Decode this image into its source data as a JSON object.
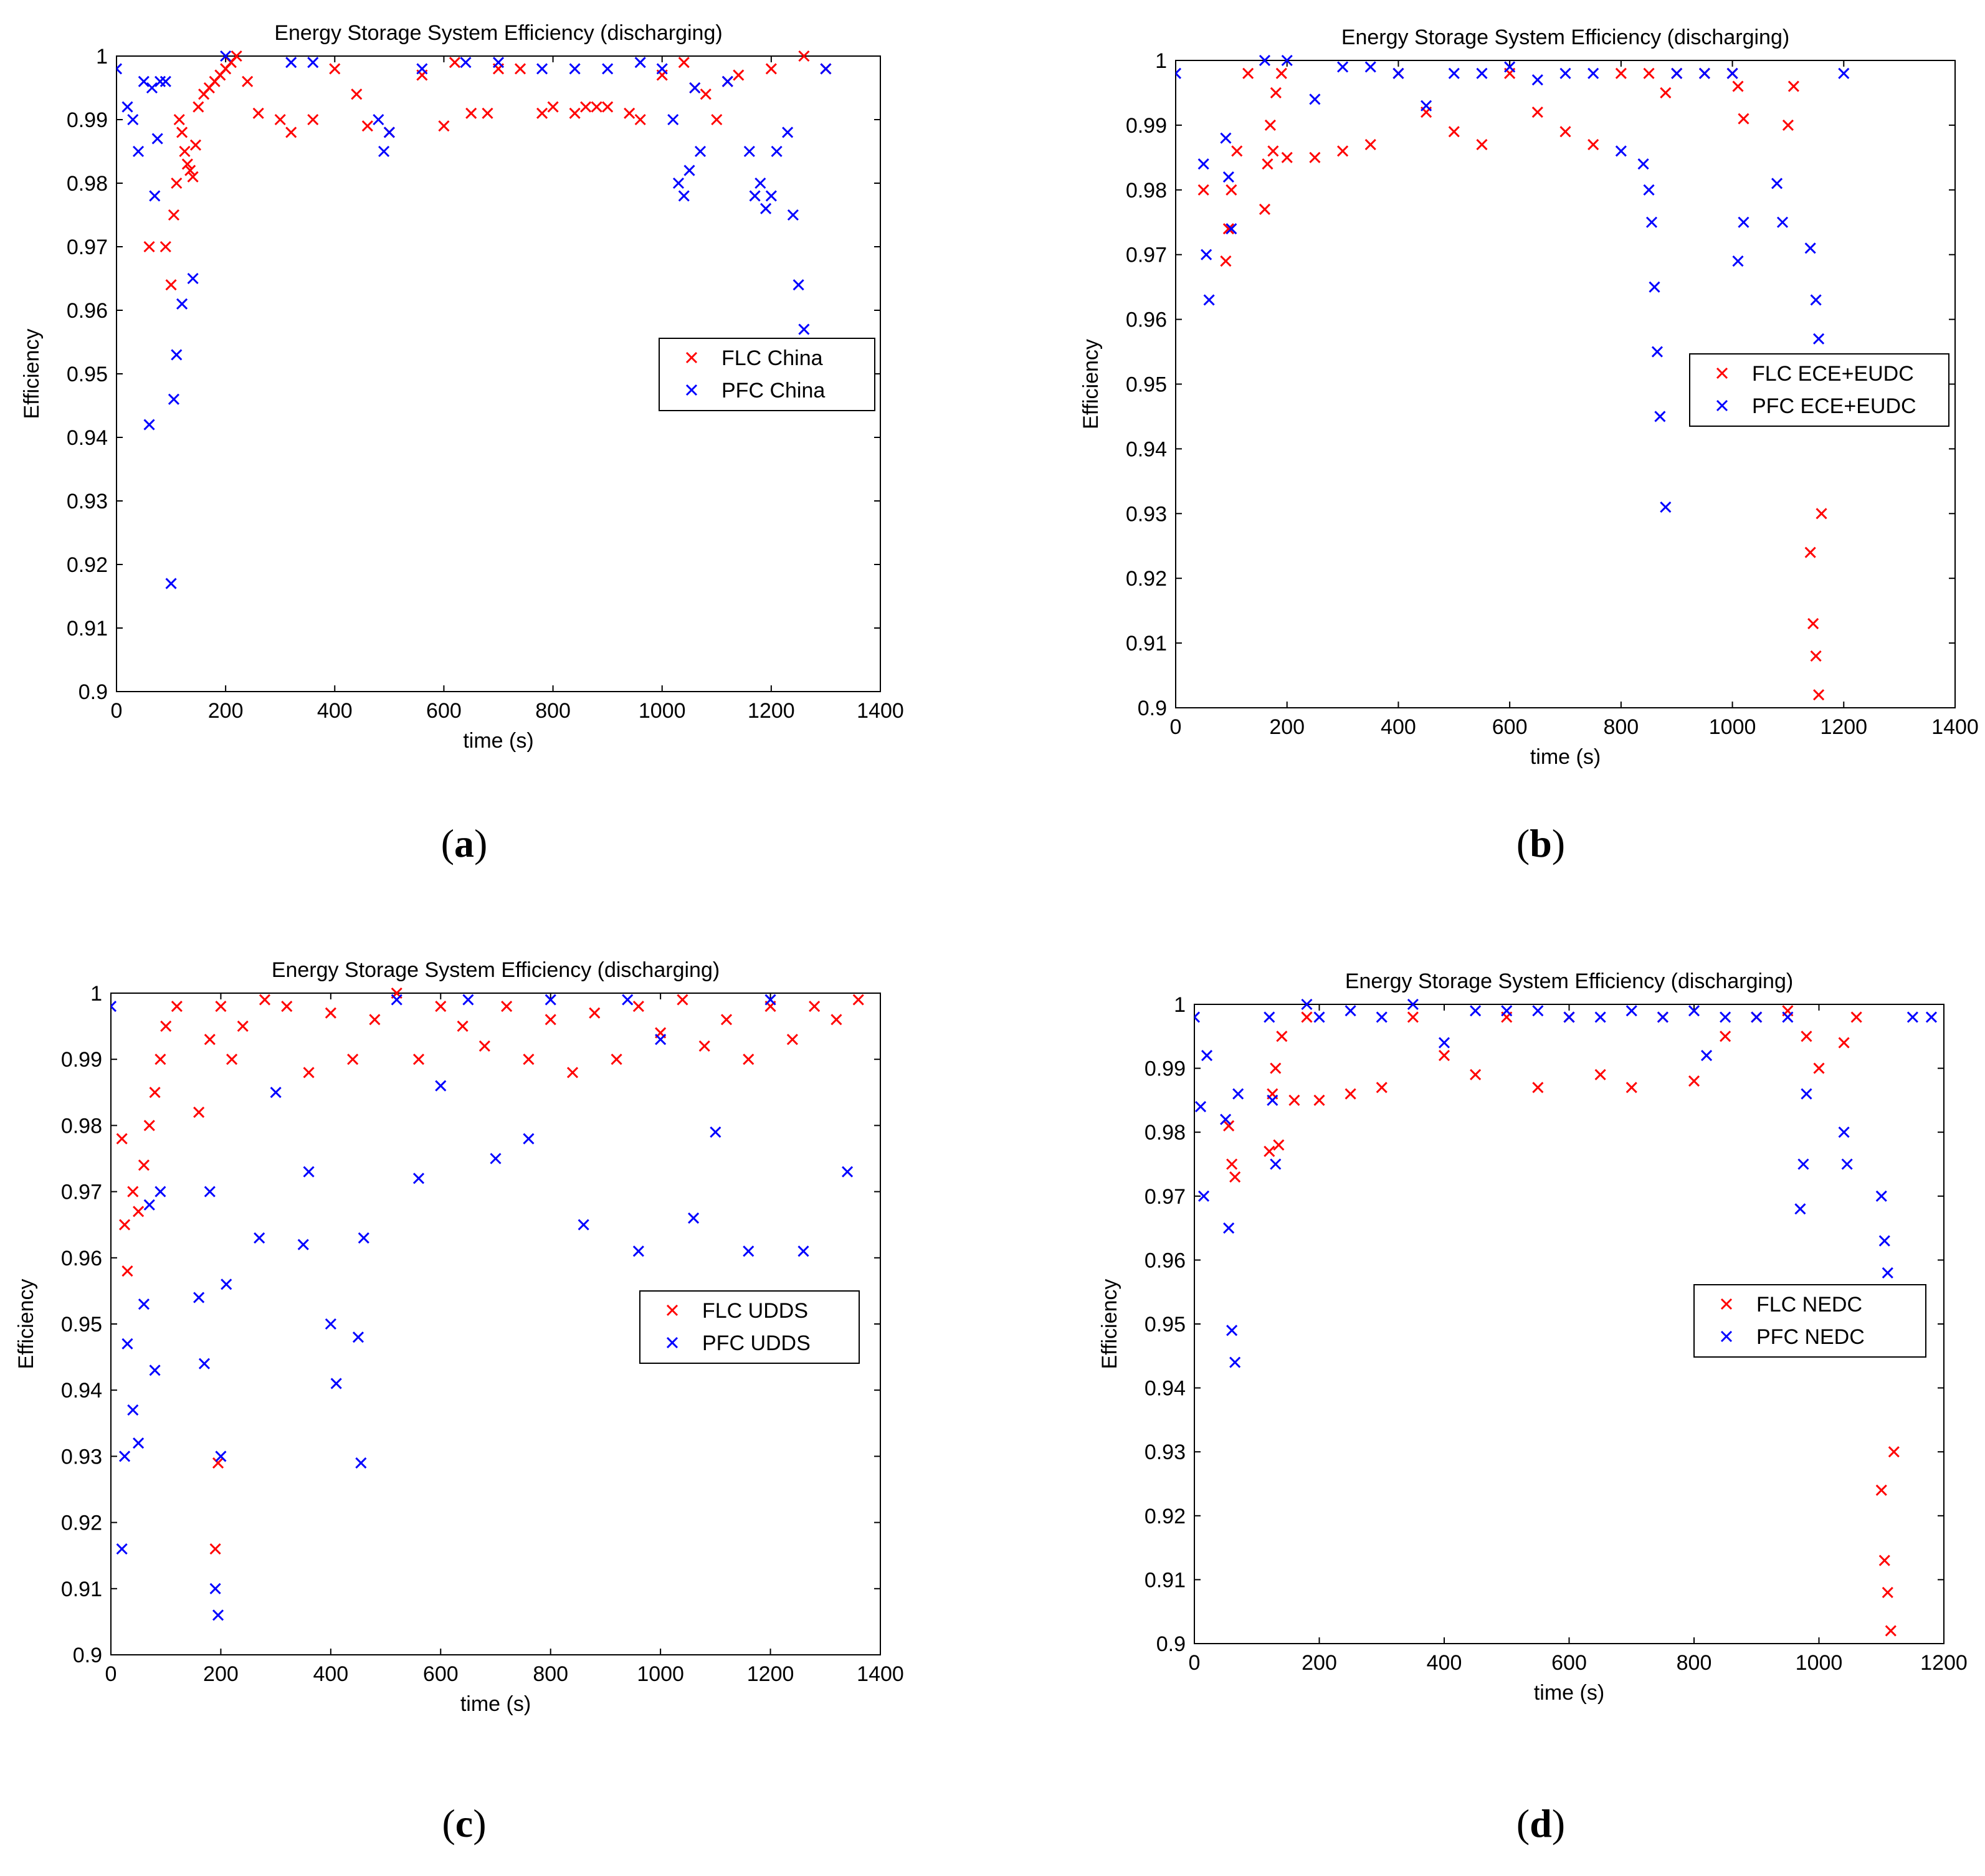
{
  "chart_data": [
    {
      "type": "scatter",
      "caption": "a",
      "title": "Energy Storage System Efficiency (discharging)",
      "xlabel": "time (s)",
      "ylabel": "Efficiency",
      "xlim": [
        0,
        1400
      ],
      "ylim": [
        0.9,
        1.0
      ],
      "xticks": [
        "0",
        "200",
        "400",
        "600",
        "800",
        "1000",
        "1200",
        "1400"
      ],
      "yticks": [
        "0.9",
        "0.91",
        "0.92",
        "0.93",
        "0.94",
        "0.95",
        "0.96",
        "0.97",
        "0.98",
        "0.99",
        "1"
      ],
      "legend_position": "right-middle",
      "series": [
        {
          "name": "FLC China",
          "color": "#ff0000",
          "x": [
            60,
            90,
            100,
            105,
            110,
            115,
            120,
            125,
            130,
            135,
            140,
            145,
            150,
            160,
            170,
            180,
            190,
            200,
            210,
            220,
            240,
            260,
            300,
            320,
            360,
            400,
            440,
            460,
            500,
            560,
            600,
            620,
            650,
            680,
            700,
            740,
            780,
            800,
            840,
            860,
            880,
            900,
            940,
            960,
            1000,
            1040,
            1060,
            1080,
            1100,
            1120,
            1140,
            1200,
            1260,
            1300
          ],
          "y": [
            0.97,
            0.97,
            0.964,
            0.975,
            0.98,
            0.99,
            0.988,
            0.985,
            0.983,
            0.982,
            0.981,
            0.986,
            0.992,
            0.994,
            0.995,
            0.996,
            0.997,
            0.998,
            0.999,
            1.0,
            0.996,
            0.991,
            0.99,
            0.988,
            0.99,
            0.998,
            0.994,
            0.989,
            0.988,
            0.997,
            0.989,
            0.999,
            0.991,
            0.991,
            0.998,
            0.998,
            0.991,
            0.992,
            0.991,
            0.992,
            0.992,
            0.992,
            0.991,
            0.99,
            0.997,
            0.999,
            0.995,
            0.994,
            0.99,
            0.996,
            0.997,
            0.998,
            1.0,
            0.998
          ]
        },
        {
          "name": "PFC China",
          "color": "#0000ff",
          "x": [
            0,
            20,
            30,
            40,
            50,
            60,
            65,
            70,
            75,
            80,
            90,
            100,
            105,
            110,
            120,
            140,
            200,
            320,
            360,
            480,
            490,
            500,
            560,
            640,
            700,
            780,
            840,
            900,
            960,
            1000,
            1020,
            1030,
            1040,
            1050,
            1060,
            1070,
            1120,
            1160,
            1170,
            1180,
            1190,
            1200,
            1210,
            1230,
            1240,
            1250,
            1260,
            1300
          ],
          "y": [
            0.998,
            0.992,
            0.99,
            0.985,
            0.996,
            0.942,
            0.995,
            0.978,
            0.987,
            0.996,
            0.996,
            0.917,
            0.946,
            0.953,
            0.961,
            0.965,
            1.0,
            0.999,
            0.999,
            0.99,
            0.985,
            0.988,
            0.998,
            0.999,
            0.999,
            0.998,
            0.998,
            0.998,
            0.999,
            0.998,
            0.99,
            0.98,
            0.978,
            0.982,
            0.995,
            0.985,
            0.996,
            0.985,
            0.978,
            0.98,
            0.976,
            0.978,
            0.985,
            0.988,
            0.975,
            0.964,
            0.957,
            0.998
          ]
        }
      ]
    },
    {
      "type": "scatter",
      "caption": "b",
      "title": "Energy Storage System Efficiency (discharging)",
      "xlabel": "time (s)",
      "ylabel": "Efficiency",
      "xlim": [
        0,
        1400
      ],
      "ylim": [
        0.9,
        1.0
      ],
      "xticks": [
        "0",
        "200",
        "400",
        "600",
        "800",
        "1000",
        "1200",
        "1400"
      ],
      "yticks": [
        "0.9",
        "0.91",
        "0.92",
        "0.93",
        "0.94",
        "0.95",
        "0.96",
        "0.97",
        "0.98",
        "0.99",
        "1"
      ],
      "legend_position": "right-middle",
      "series": [
        {
          "name": "FLC ECE+EUDC",
          "color": "#ff0000",
          "x": [
            50,
            90,
            95,
            100,
            110,
            130,
            160,
            165,
            170,
            175,
            180,
            190,
            200,
            250,
            300,
            350,
            400,
            450,
            500,
            550,
            600,
            650,
            700,
            750,
            800,
            850,
            880,
            900,
            950,
            1000,
            1010,
            1020,
            1100,
            1110,
            1140,
            1145,
            1150,
            1155,
            1160
          ],
          "y": [
            0.98,
            0.969,
            0.974,
            0.98,
            0.986,
            0.998,
            0.977,
            0.984,
            0.99,
            0.986,
            0.995,
            0.998,
            0.985,
            0.985,
            0.986,
            0.987,
            0.998,
            0.992,
            0.989,
            0.987,
            0.998,
            0.992,
            0.989,
            0.987,
            0.998,
            0.998,
            0.995,
            0.998,
            0.998,
            0.998,
            0.996,
            0.991,
            0.99,
            0.996,
            0.924,
            0.913,
            0.908,
            0.902,
            0.93
          ]
        },
        {
          "name": "PFC ECE+EUDC",
          "color": "#0000ff",
          "x": [
            0,
            50,
            55,
            60,
            90,
            95,
            100,
            160,
            200,
            250,
            300,
            350,
            400,
            450,
            500,
            550,
            600,
            650,
            700,
            750,
            800,
            840,
            850,
            855,
            860,
            865,
            870,
            880,
            900,
            950,
            1000,
            1010,
            1020,
            1080,
            1090,
            1140,
            1150,
            1155,
            1200
          ],
          "y": [
            0.998,
            0.984,
            0.97,
            0.963,
            0.988,
            0.982,
            0.974,
            1.0,
            1.0,
            0.994,
            0.999,
            0.999,
            0.998,
            0.993,
            0.998,
            0.998,
            0.999,
            0.997,
            0.998,
            0.998,
            0.986,
            0.984,
            0.98,
            0.975,
            0.965,
            0.955,
            0.945,
            0.931,
            0.998,
            0.998,
            0.998,
            0.969,
            0.975,
            0.981,
            0.975,
            0.971,
            0.963,
            0.957,
            0.998
          ]
        }
      ]
    },
    {
      "type": "scatter",
      "caption": "c",
      "title": "Energy Storage System Efficiency (discharging)",
      "xlabel": "time (s)",
      "ylabel": "Efficiency",
      "xlim": [
        0,
        1400
      ],
      "ylim": [
        0.9,
        1.0
      ],
      "xticks": [
        "0",
        "200",
        "400",
        "600",
        "800",
        "1000",
        "1200",
        "1400"
      ],
      "yticks": [
        "0.9",
        "0.91",
        "0.92",
        "0.93",
        "0.94",
        "0.95",
        "0.96",
        "0.97",
        "0.98",
        "0.99",
        "1"
      ],
      "legend_position": "right-middle",
      "series": [
        {
          "name": "FLC UDDS",
          "color": "#ff0000",
          "x": [
            20,
            25,
            30,
            40,
            50,
            60,
            70,
            80,
            90,
            100,
            120,
            160,
            180,
            190,
            195,
            200,
            220,
            240,
            280,
            320,
            360,
            400,
            440,
            480,
            520,
            560,
            600,
            640,
            680,
            720,
            760,
            800,
            840,
            880,
            920,
            960,
            1000,
            1040,
            1080,
            1120,
            1160,
            1200,
            1240,
            1280,
            1320,
            1360
          ],
          "y": [
            0.978,
            0.965,
            0.958,
            0.97,
            0.967,
            0.974,
            0.98,
            0.985,
            0.99,
            0.995,
            0.998,
            0.982,
            0.993,
            0.916,
            0.929,
            0.998,
            0.99,
            0.995,
            0.999,
            0.998,
            0.988,
            0.997,
            0.99,
            0.996,
            1.0,
            0.99,
            0.998,
            0.995,
            0.992,
            0.998,
            0.99,
            0.996,
            0.988,
            0.997,
            0.99,
            0.998,
            0.994,
            0.999,
            0.992,
            0.996,
            0.99,
            0.998,
            0.993,
            0.998,
            0.996,
            0.999
          ]
        },
        {
          "name": "PFC UDDS",
          "color": "#0000ff",
          "x": [
            0,
            20,
            25,
            30,
            40,
            50,
            60,
            70,
            80,
            90,
            160,
            170,
            180,
            190,
            195,
            200,
            210,
            270,
            300,
            350,
            360,
            400,
            410,
            450,
            455,
            460,
            520,
            560,
            600,
            650,
            700,
            760,
            800,
            860,
            940,
            960,
            1000,
            1060,
            1100,
            1160,
            1200,
            1260,
            1340
          ],
          "y": [
            0.998,
            0.916,
            0.93,
            0.947,
            0.937,
            0.932,
            0.953,
            0.968,
            0.943,
            0.97,
            0.954,
            0.944,
            0.97,
            0.91,
            0.906,
            0.93,
            0.956,
            0.963,
            0.985,
            0.962,
            0.973,
            0.95,
            0.941,
            0.948,
            0.929,
            0.963,
            0.999,
            0.972,
            0.986,
            0.999,
            0.975,
            0.978,
            0.999,
            0.965,
            0.999,
            0.961,
            0.993,
            0.966,
            0.979,
            0.961,
            0.999,
            0.961,
            0.973
          ]
        }
      ]
    },
    {
      "type": "scatter",
      "caption": "d",
      "title": "Energy Storage System Efficiency (discharging)",
      "xlabel": "time (s)",
      "ylabel": "Efficiency",
      "xlim": [
        0,
        1200
      ],
      "ylim": [
        0.9,
        1.0
      ],
      "xticks": [
        "0",
        "200",
        "400",
        "600",
        "800",
        "1000",
        "1200"
      ],
      "yticks": [
        "0.9",
        "0.91",
        "0.92",
        "0.93",
        "0.94",
        "0.95",
        "0.96",
        "0.97",
        "0.98",
        "0.99",
        "1"
      ],
      "legend_position": "right-middle",
      "series": [
        {
          "name": "FLC NEDC",
          "color": "#ff0000",
          "x": [
            55,
            60,
            65,
            120,
            125,
            130,
            135,
            140,
            160,
            180,
            200,
            250,
            300,
            350,
            400,
            450,
            500,
            550,
            600,
            650,
            700,
            750,
            800,
            850,
            900,
            950,
            980,
            1000,
            1040,
            1060,
            1100,
            1105,
            1110,
            1115,
            1120
          ],
          "y": [
            0.981,
            0.975,
            0.973,
            0.977,
            0.986,
            0.99,
            0.978,
            0.995,
            0.985,
            0.998,
            0.985,
            0.986,
            0.987,
            0.998,
            0.992,
            0.989,
            0.998,
            0.987,
            0.998,
            0.989,
            0.987,
            0.998,
            0.988,
            0.995,
            0.998,
            0.999,
            0.995,
            0.99,
            0.994,
            0.998,
            0.924,
            0.913,
            0.908,
            0.902,
            0.93
          ]
        },
        {
          "name": "PFC NEDC",
          "color": "#0000ff",
          "x": [
            0,
            10,
            15,
            20,
            50,
            55,
            60,
            65,
            70,
            120,
            125,
            130,
            180,
            200,
            250,
            300,
            350,
            400,
            450,
            500,
            550,
            600,
            650,
            700,
            750,
            800,
            820,
            850,
            900,
            950,
            970,
            975,
            980,
            1040,
            1045,
            1100,
            1105,
            1110,
            1150,
            1180
          ],
          "y": [
            0.998,
            0.984,
            0.97,
            0.992,
            0.982,
            0.965,
            0.949,
            0.944,
            0.986,
            0.998,
            0.985,
            0.975,
            1.0,
            0.998,
            0.999,
            0.998,
            1.0,
            0.994,
            0.999,
            0.999,
            0.999,
            0.998,
            0.998,
            0.999,
            0.998,
            0.999,
            0.992,
            0.998,
            0.998,
            0.998,
            0.968,
            0.975,
            0.986,
            0.98,
            0.975,
            0.97,
            0.963,
            0.958,
            0.998,
            0.998
          ]
        }
      ]
    }
  ]
}
